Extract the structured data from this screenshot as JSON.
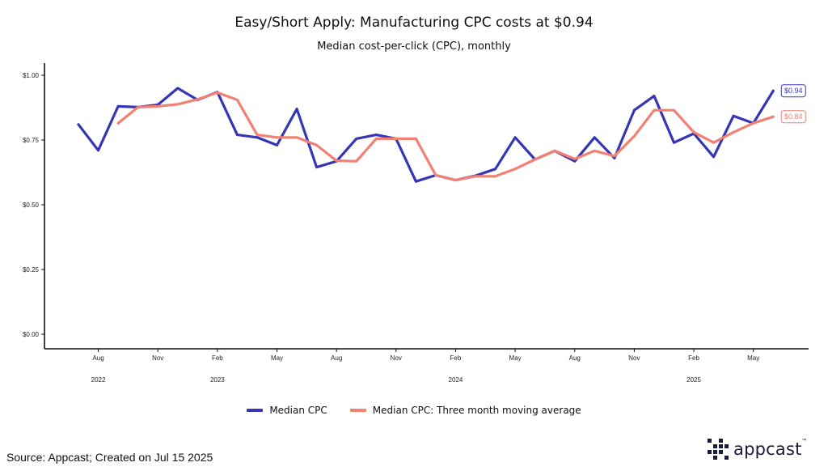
{
  "chart_data": {
    "type": "line",
    "title": "Easy/Short Apply: Manufacturing CPC costs at $0.94",
    "subtitle": "Median cost-per-click (CPC), monthly",
    "xlabel": "",
    "ylabel": "",
    "ylim": [
      0,
      1.0
    ],
    "y_ticks": [
      0.0,
      0.25,
      0.5,
      0.75,
      1.0
    ],
    "y_tick_labels": [
      "$0.00",
      "$0.25",
      "$0.50",
      "$0.75",
      "$1.00"
    ],
    "x_ticks": [
      {
        "date": "2022-08",
        "label": "Aug"
      },
      {
        "date": "2022-11",
        "label": "Nov"
      },
      {
        "date": "2023-02",
        "label": "Feb"
      },
      {
        "date": "2023-05",
        "label": "May"
      },
      {
        "date": "2023-08",
        "label": "Aug"
      },
      {
        "date": "2023-11",
        "label": "Nov"
      },
      {
        "date": "2024-02",
        "label": "Feb"
      },
      {
        "date": "2024-05",
        "label": "May"
      },
      {
        "date": "2024-08",
        "label": "Aug"
      },
      {
        "date": "2024-11",
        "label": "Nov"
      },
      {
        "date": "2025-02",
        "label": "Feb"
      },
      {
        "date": "2025-05",
        "label": "May"
      }
    ],
    "year_labels": [
      {
        "date": "2022-08",
        "label": "2022"
      },
      {
        "date": "2023-02",
        "label": "2023"
      },
      {
        "date": "2024-02",
        "label": "2024"
      },
      {
        "date": "2025-02",
        "label": "2025"
      }
    ],
    "x": [
      "2022-07",
      "2022-08",
      "2022-09",
      "2022-10",
      "2022-11",
      "2022-12",
      "2023-01",
      "2023-02",
      "2023-03",
      "2023-04",
      "2023-05",
      "2023-06",
      "2023-07",
      "2023-08",
      "2023-09",
      "2023-10",
      "2023-11",
      "2023-12",
      "2024-01",
      "2024-02",
      "2024-03",
      "2024-04",
      "2024-05",
      "2024-06",
      "2024-07",
      "2024-08",
      "2024-09",
      "2024-10",
      "2024-11",
      "2024-12",
      "2025-01",
      "2025-02",
      "2025-03",
      "2025-04",
      "2025-05",
      "2025-06"
    ],
    "series": [
      {
        "name": "Median CPC",
        "color": "#3535b5",
        "end_label": "$0.94",
        "values": [
          0.81,
          0.71,
          0.88,
          0.877,
          0.886,
          0.95,
          0.905,
          0.935,
          0.77,
          0.76,
          0.73,
          0.87,
          0.645,
          0.668,
          0.755,
          0.77,
          0.755,
          0.59,
          0.614,
          0.595,
          0.612,
          0.638,
          0.76,
          0.675,
          0.708,
          0.668,
          0.76,
          0.68,
          0.865,
          0.92,
          0.74,
          0.775,
          0.685,
          0.843,
          0.815,
          0.94
        ]
      },
      {
        "name": "Median CPC: Three month moving average",
        "color": "#f28073",
        "end_label": "$0.84",
        "values": [
          null,
          null,
          0.815,
          0.877,
          0.88,
          0.888,
          0.907,
          0.933,
          0.905,
          0.77,
          0.76,
          0.76,
          0.73,
          0.67,
          0.668,
          0.755,
          0.755,
          0.755,
          0.614,
          0.595,
          0.61,
          0.61,
          0.638,
          0.675,
          0.708,
          0.677,
          0.708,
          0.688,
          0.765,
          0.865,
          0.865,
          0.78,
          0.74,
          0.78,
          0.815,
          0.84
        ]
      }
    ],
    "legend_position": "bottom",
    "grid": false
  },
  "footer": {
    "source": "Source: Appcast; Created on Jul 15 2025"
  },
  "brand": {
    "name": "appcast",
    "trademark": "™"
  }
}
